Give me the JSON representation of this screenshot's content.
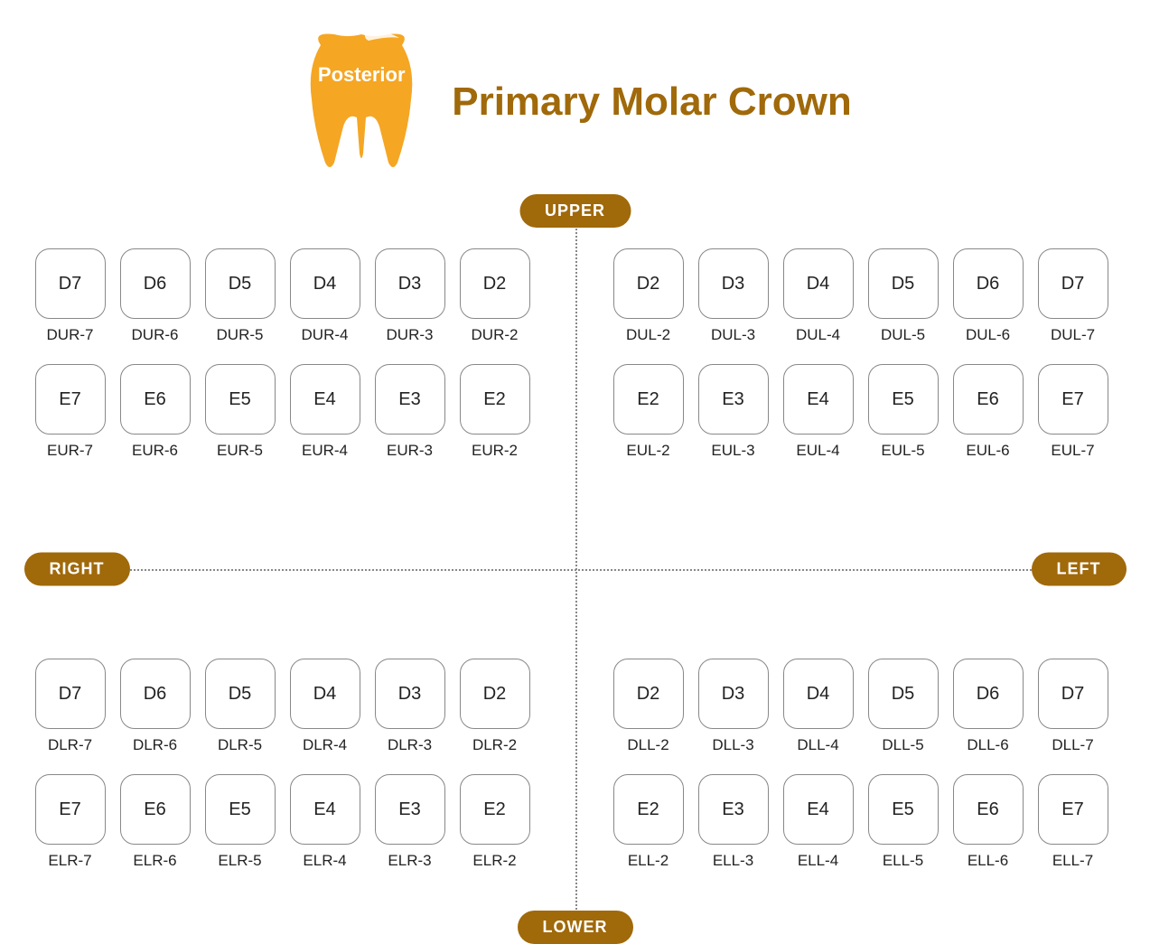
{
  "header": {
    "tooth_label": "Posterior",
    "title": "Primary Molar Crown",
    "title_color": "#a0690a",
    "title_fontsize": 44,
    "tooth_color": "#f5a623"
  },
  "pills": {
    "upper": "UPPER",
    "lower": "LOWER",
    "left": "LEFT",
    "right": "RIGHT",
    "bg_color": "#a0690a",
    "text_color": "#ffffff"
  },
  "style": {
    "box_border_color": "#888888",
    "box_border_radius": 16,
    "box_size": 78,
    "dot_color": "#888888",
    "background_color": "#ffffff",
    "box_font_size": 20,
    "code_font_size": 17
  },
  "quadrants": {
    "upper_right": {
      "rows": [
        [
          {
            "box": "D7",
            "code": "DUR-7"
          },
          {
            "box": "D6",
            "code": "DUR-6"
          },
          {
            "box": "D5",
            "code": "DUR-5"
          },
          {
            "box": "D4",
            "code": "DUR-4"
          },
          {
            "box": "D3",
            "code": "DUR-3"
          },
          {
            "box": "D2",
            "code": "DUR-2"
          }
        ],
        [
          {
            "box": "E7",
            "code": "EUR-7"
          },
          {
            "box": "E6",
            "code": "EUR-6"
          },
          {
            "box": "E5",
            "code": "EUR-5"
          },
          {
            "box": "E4",
            "code": "EUR-4"
          },
          {
            "box": "E3",
            "code": "EUR-3"
          },
          {
            "box": "E2",
            "code": "EUR-2"
          }
        ]
      ]
    },
    "upper_left": {
      "rows": [
        [
          {
            "box": "D2",
            "code": "DUL-2"
          },
          {
            "box": "D3",
            "code": "DUL-3"
          },
          {
            "box": "D4",
            "code": "DUL-4"
          },
          {
            "box": "D5",
            "code": "DUL-5"
          },
          {
            "box": "D6",
            "code": "DUL-6"
          },
          {
            "box": "D7",
            "code": "DUL-7"
          }
        ],
        [
          {
            "box": "E2",
            "code": "EUL-2"
          },
          {
            "box": "E3",
            "code": "EUL-3"
          },
          {
            "box": "E4",
            "code": "EUL-4"
          },
          {
            "box": "E5",
            "code": "EUL-5"
          },
          {
            "box": "E6",
            "code": "EUL-6"
          },
          {
            "box": "E7",
            "code": "EUL-7"
          }
        ]
      ]
    },
    "lower_right": {
      "rows": [
        [
          {
            "box": "D7",
            "code": "DLR-7"
          },
          {
            "box": "D6",
            "code": "DLR-6"
          },
          {
            "box": "D5",
            "code": "DLR-5"
          },
          {
            "box": "D4",
            "code": "DLR-4"
          },
          {
            "box": "D3",
            "code": "DLR-3"
          },
          {
            "box": "D2",
            "code": "DLR-2"
          }
        ],
        [
          {
            "box": "E7",
            "code": "ELR-7"
          },
          {
            "box": "E6",
            "code": "ELR-6"
          },
          {
            "box": "E5",
            "code": "ELR-5"
          },
          {
            "box": "E4",
            "code": "ELR-4"
          },
          {
            "box": "E3",
            "code": "ELR-3"
          },
          {
            "box": "E2",
            "code": "ELR-2"
          }
        ]
      ]
    },
    "lower_left": {
      "rows": [
        [
          {
            "box": "D2",
            "code": "DLL-2"
          },
          {
            "box": "D3",
            "code": "DLL-3"
          },
          {
            "box": "D4",
            "code": "DLL-4"
          },
          {
            "box": "D5",
            "code": "DLL-5"
          },
          {
            "box": "D6",
            "code": "DLL-6"
          },
          {
            "box": "D7",
            "code": "DLL-7"
          }
        ],
        [
          {
            "box": "E2",
            "code": "ELL-2"
          },
          {
            "box": "E3",
            "code": "ELL-3"
          },
          {
            "box": "E4",
            "code": "ELL-4"
          },
          {
            "box": "E5",
            "code": "ELL-5"
          },
          {
            "box": "E6",
            "code": "ELL-6"
          },
          {
            "box": "E7",
            "code": "ELL-7"
          }
        ]
      ]
    }
  }
}
